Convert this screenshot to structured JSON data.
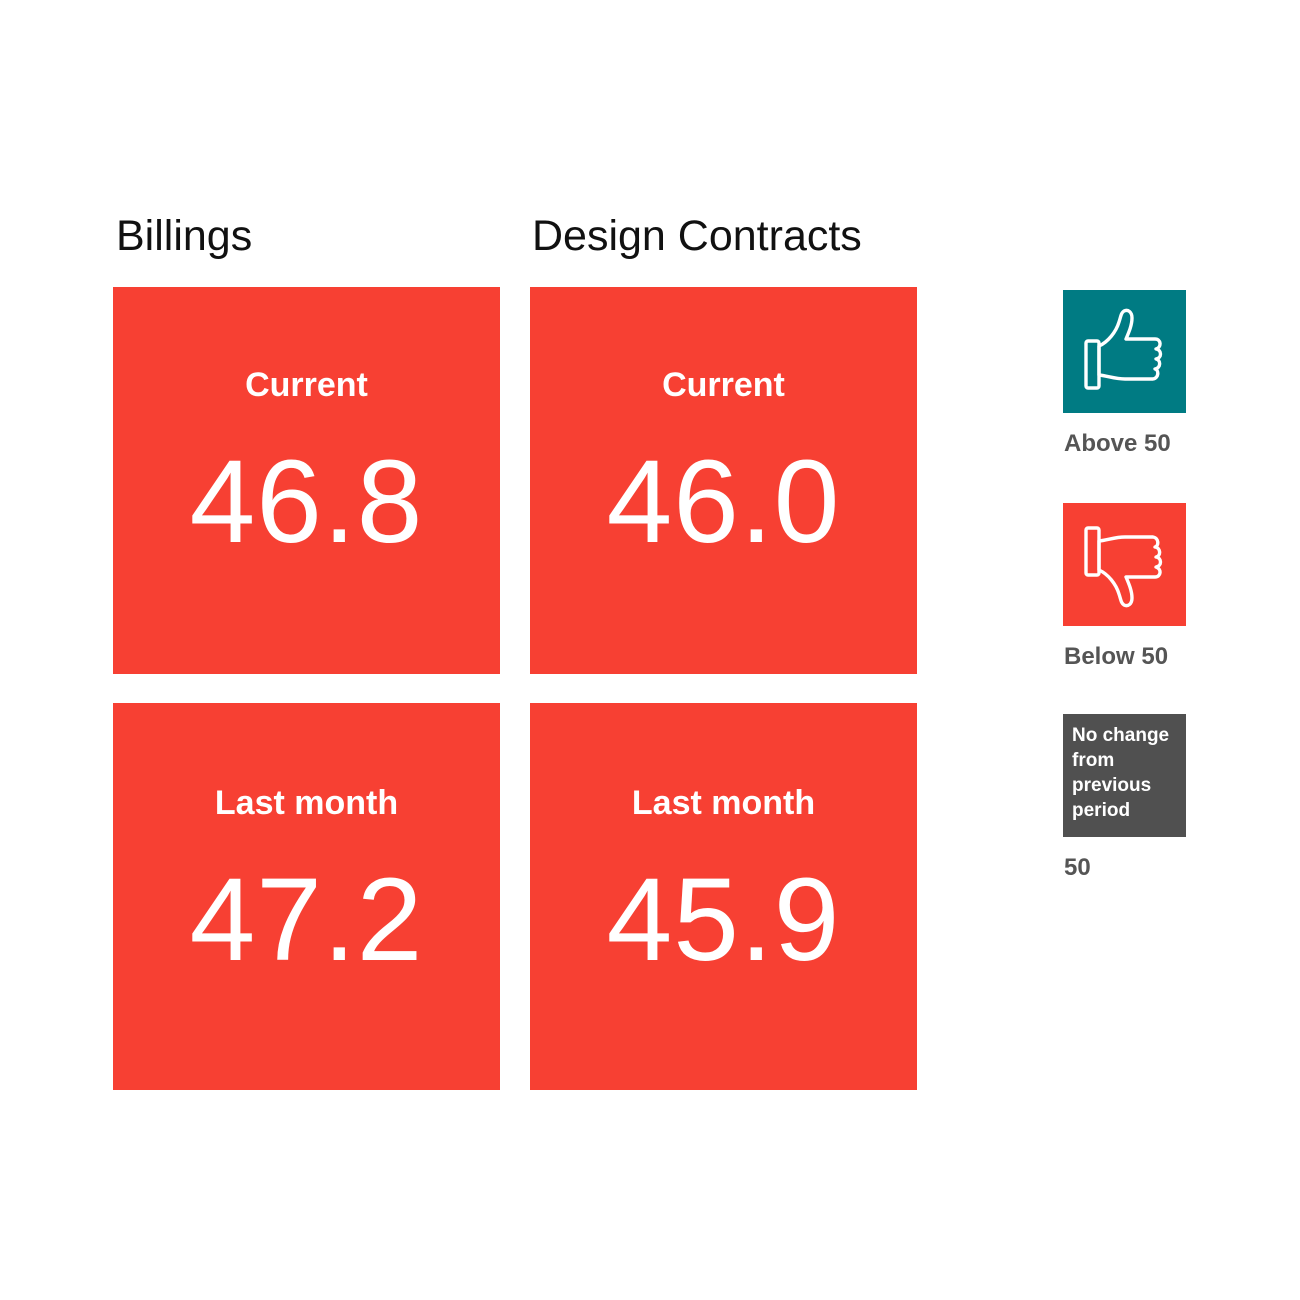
{
  "colors": {
    "tile_bg": "#f74033",
    "above_bg": "#007b83",
    "below_bg": "#f74033",
    "nochange_bg": "#505050"
  },
  "columns": [
    {
      "title": "Billings",
      "current_label": "Current",
      "current_value": "46.8",
      "last_label": "Last month",
      "last_value": "47.2"
    },
    {
      "title": "Design Contracts",
      "current_label": "Current",
      "current_value": "46.0",
      "last_label": "Last month",
      "last_value": "45.9"
    }
  ],
  "legend": {
    "above": {
      "icon": "thumbs-up-icon",
      "label": "Above 50"
    },
    "below": {
      "icon": "thumbs-down-icon",
      "label": "Below 50"
    },
    "nochange": {
      "text": "No change from previous period",
      "label": "50"
    }
  }
}
